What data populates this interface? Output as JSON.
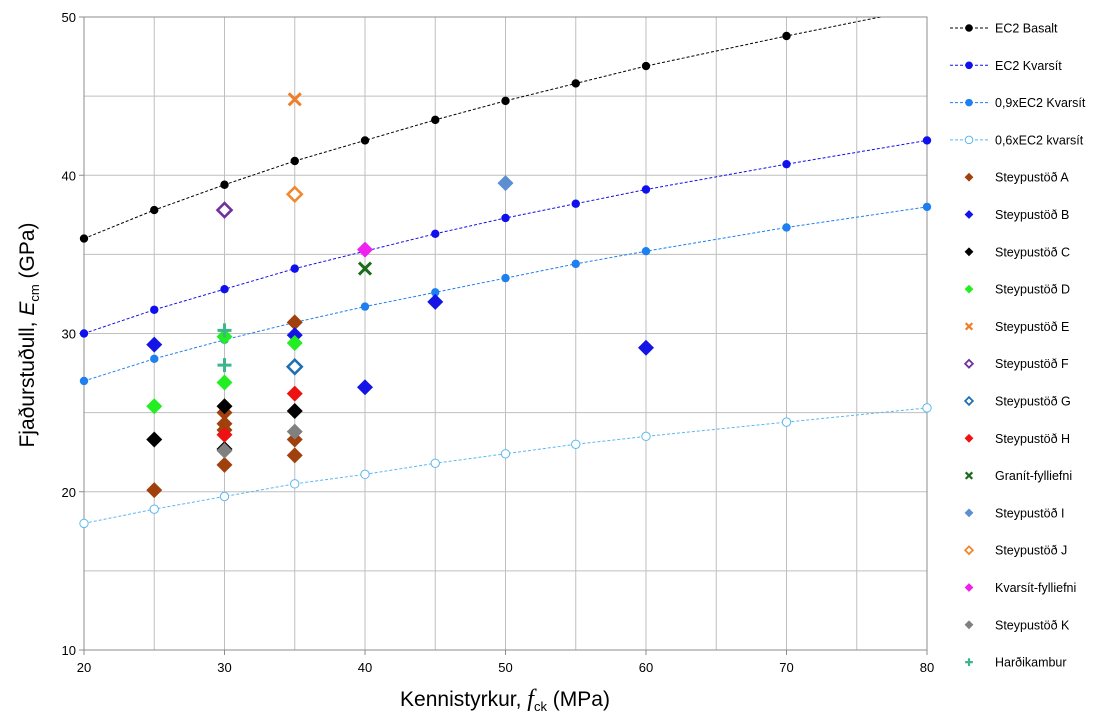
{
  "chart_data": {
    "type": "scatter",
    "xlabel": {
      "prefix": "Kennistyrkur, ",
      "var": "f",
      "sub": "ck",
      "suffix": " (MPa)"
    },
    "ylabel": {
      "prefix": "Fjaðurstuðull, ",
      "var": "E",
      "sub": "cm",
      "suffix": " (GPa)"
    },
    "xlim": [
      20,
      80
    ],
    "ylim": [
      10,
      50
    ],
    "xticks": [
      20,
      30,
      40,
      50,
      60,
      70,
      80
    ],
    "yticks": [
      10,
      20,
      30,
      40,
      50
    ],
    "grid": {
      "x_minor_step": 5,
      "y_minor_step": 5
    },
    "legend_position": "right",
    "series": [
      {
        "name": "EC2 Basalt",
        "kind": "line",
        "color": "#000000",
        "marker": "circle",
        "line_color": "#000000",
        "x": [
          20,
          25,
          30,
          35,
          40,
          45,
          50,
          55,
          60,
          70,
          80
        ],
        "y": [
          36.0,
          37.8,
          39.4,
          40.9,
          42.2,
          43.5,
          44.7,
          45.8,
          46.9,
          48.8,
          50.6
        ]
      },
      {
        "name": "EC2 Kvarsít",
        "kind": "line",
        "color": "#1010ee",
        "marker": "circle",
        "line_color": "#1010ee",
        "x": [
          20,
          25,
          30,
          35,
          40,
          45,
          50,
          55,
          60,
          70,
          80
        ],
        "y": [
          30.0,
          31.5,
          32.8,
          34.1,
          35.2,
          36.3,
          37.3,
          38.2,
          39.1,
          40.7,
          42.2
        ]
      },
      {
        "name": "0,9xEC2 Kvarsít",
        "kind": "line",
        "color": "#1e7ff0",
        "marker": "circle",
        "line_color": "#1e7ff0",
        "x": [
          20,
          25,
          30,
          35,
          40,
          45,
          50,
          55,
          60,
          70,
          80
        ],
        "y": [
          27.0,
          28.4,
          29.6,
          30.7,
          31.7,
          32.6,
          33.5,
          34.4,
          35.2,
          36.7,
          38.0
        ]
      },
      {
        "name": "0,6xEC2 kvarsít",
        "kind": "line",
        "color": "#5bb8f0",
        "marker": "circle-open",
        "line_color": "#5bb8f0",
        "x": [
          20,
          25,
          30,
          35,
          40,
          45,
          50,
          55,
          60,
          70,
          80
        ],
        "y": [
          18.0,
          18.9,
          19.7,
          20.5,
          21.1,
          21.8,
          22.4,
          23.0,
          23.5,
          24.4,
          25.3
        ]
      },
      {
        "name": "Steypustöð A",
        "kind": "points",
        "color": "#a0410d",
        "marker": "diamond",
        "x": [
          25,
          30,
          30,
          30,
          30,
          35,
          35,
          35
        ],
        "y": [
          20.1,
          21.7,
          23.9,
          24.3,
          25.0,
          30.7,
          23.3,
          22.3
        ]
      },
      {
        "name": "Steypustöð B",
        "kind": "points",
        "color": "#1414e6",
        "marker": "diamond",
        "x": [
          25,
          35,
          40,
          45,
          60
        ],
        "y": [
          29.3,
          29.9,
          26.6,
          32.0,
          29.1
        ]
      },
      {
        "name": "Steypustöð C",
        "kind": "points",
        "color": "#000000",
        "marker": "diamond",
        "x": [
          25,
          30,
          30,
          35
        ],
        "y": [
          23.3,
          25.4,
          22.7,
          25.1
        ]
      },
      {
        "name": "Steypustöð D",
        "kind": "points",
        "color": "#22ee22",
        "marker": "diamond",
        "x": [
          25,
          30,
          30,
          35
        ],
        "y": [
          25.4,
          26.9,
          29.8,
          29.4
        ]
      },
      {
        "name": "Steypustöð E",
        "kind": "points",
        "color": "#f07d2a",
        "marker": "x",
        "x": [
          35
        ],
        "y": [
          44.8
        ]
      },
      {
        "name": "Steypustöð F",
        "kind": "points",
        "color": "#7030a0",
        "marker": "diamond-open",
        "x": [
          30
        ],
        "y": [
          37.8
        ]
      },
      {
        "name": "Steypustöð G",
        "kind": "points",
        "color": "#1f6fb4",
        "marker": "diamond-open",
        "x": [
          35
        ],
        "y": [
          27.9
        ]
      },
      {
        "name": "Steypustöð H",
        "kind": "points",
        "color": "#ee1111",
        "marker": "diamond",
        "x": [
          30,
          35
        ],
        "y": [
          23.6,
          26.2
        ]
      },
      {
        "name": "Granít-fylliefni",
        "kind": "points",
        "color": "#1a6b1a",
        "marker": "x",
        "x": [
          40
        ],
        "y": [
          34.1
        ]
      },
      {
        "name": "Steypustöð I",
        "kind": "points",
        "color": "#5b8fd1",
        "marker": "diamond",
        "x": [
          50
        ],
        "y": [
          39.5
        ]
      },
      {
        "name": "Steypustöð J",
        "kind": "points",
        "color": "#f0882e",
        "marker": "diamond-open",
        "x": [
          35
        ],
        "y": [
          38.8
        ]
      },
      {
        "name": "Kvarsít-fylliefni",
        "kind": "points",
        "color": "#ee22ee",
        "marker": "diamond",
        "x": [
          40
        ],
        "y": [
          35.3
        ]
      },
      {
        "name": "Steypustöð K",
        "kind": "points",
        "color": "#808080",
        "marker": "diamond",
        "x": [
          30,
          35
        ],
        "y": [
          22.6,
          23.8
        ]
      },
      {
        "name": "Harðikambur",
        "kind": "points",
        "color": "#3cb58a",
        "marker": "plus",
        "x": [
          30,
          30
        ],
        "y": [
          30.2,
          28.0
        ]
      }
    ]
  }
}
